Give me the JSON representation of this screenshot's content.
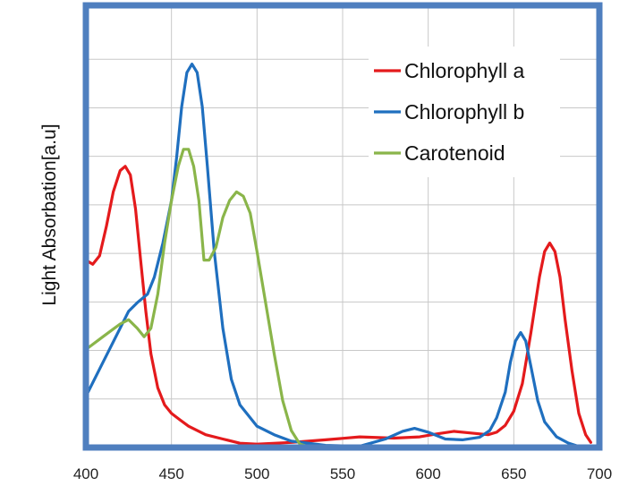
{
  "chart_data": {
    "type": "line",
    "title": "",
    "xlabel": "",
    "ylabel": "Light Absorbation[a.u]",
    "xlim": [
      400,
      700
    ],
    "ylim": [
      0,
      1
    ],
    "x_ticks": [
      "400",
      "450",
      "500",
      "550",
      "600",
      "650",
      "700"
    ],
    "grid": true,
    "legend_position": "top-right",
    "frame_color": "#4f7fbf",
    "series": [
      {
        "name": "Chlorophyll a",
        "color": "#e41a1c",
        "points": [
          [
            400,
            0.44
          ],
          [
            404,
            0.43
          ],
          [
            408,
            0.45
          ],
          [
            412,
            0.52
          ],
          [
            416,
            0.6
          ],
          [
            420,
            0.65
          ],
          [
            423,
            0.66
          ],
          [
            426,
            0.64
          ],
          [
            429,
            0.56
          ],
          [
            432,
            0.44
          ],
          [
            435,
            0.32
          ],
          [
            438,
            0.22
          ],
          [
            442,
            0.14
          ],
          [
            446,
            0.1
          ],
          [
            450,
            0.08
          ],
          [
            455,
            0.065
          ],
          [
            460,
            0.05
          ],
          [
            470,
            0.03
          ],
          [
            480,
            0.02
          ],
          [
            490,
            0.01
          ],
          [
            500,
            0.008
          ],
          [
            520,
            0.012
          ],
          [
            540,
            0.018
          ],
          [
            560,
            0.025
          ],
          [
            580,
            0.022
          ],
          [
            595,
            0.025
          ],
          [
            605,
            0.032
          ],
          [
            615,
            0.038
          ],
          [
            625,
            0.034
          ],
          [
            635,
            0.03
          ],
          [
            640,
            0.036
          ],
          [
            645,
            0.052
          ],
          [
            650,
            0.085
          ],
          [
            655,
            0.15
          ],
          [
            660,
            0.27
          ],
          [
            665,
            0.4
          ],
          [
            668,
            0.46
          ],
          [
            671,
            0.48
          ],
          [
            674,
            0.46
          ],
          [
            677,
            0.4
          ],
          [
            680,
            0.3
          ],
          [
            684,
            0.18
          ],
          [
            688,
            0.08
          ],
          [
            692,
            0.03
          ],
          [
            695,
            0.012
          ]
        ]
      },
      {
        "name": "Chlorophyll b",
        "color": "#1f6fbf",
        "points": [
          [
            400,
            0.12
          ],
          [
            410,
            0.2
          ],
          [
            420,
            0.28
          ],
          [
            425,
            0.32
          ],
          [
            430,
            0.34
          ],
          [
            436,
            0.36
          ],
          [
            440,
            0.4
          ],
          [
            445,
            0.48
          ],
          [
            450,
            0.58
          ],
          [
            453,
            0.68
          ],
          [
            456,
            0.8
          ],
          [
            459,
            0.88
          ],
          [
            462,
            0.9
          ],
          [
            465,
            0.88
          ],
          [
            468,
            0.8
          ],
          [
            471,
            0.66
          ],
          [
            475,
            0.46
          ],
          [
            480,
            0.28
          ],
          [
            485,
            0.16
          ],
          [
            490,
            0.1
          ],
          [
            500,
            0.05
          ],
          [
            510,
            0.03
          ],
          [
            520,
            0.015
          ],
          [
            540,
            0.005
          ],
          [
            560,
            0.003
          ],
          [
            575,
            0.02
          ],
          [
            585,
            0.038
          ],
          [
            592,
            0.045
          ],
          [
            600,
            0.036
          ],
          [
            610,
            0.02
          ],
          [
            620,
            0.018
          ],
          [
            630,
            0.024
          ],
          [
            636,
            0.04
          ],
          [
            640,
            0.07
          ],
          [
            645,
            0.13
          ],
          [
            648,
            0.2
          ],
          [
            651,
            0.25
          ],
          [
            654,
            0.27
          ],
          [
            657,
            0.25
          ],
          [
            660,
            0.19
          ],
          [
            664,
            0.11
          ],
          [
            668,
            0.06
          ],
          [
            675,
            0.025
          ],
          [
            682,
            0.01
          ],
          [
            690,
            0.0
          ]
        ]
      },
      {
        "name": "Carotenoid",
        "color": "#8ab54a",
        "points": [
          [
            400,
            0.23
          ],
          [
            410,
            0.26
          ],
          [
            420,
            0.29
          ],
          [
            425,
            0.3
          ],
          [
            430,
            0.28
          ],
          [
            434,
            0.26
          ],
          [
            438,
            0.28
          ],
          [
            442,
            0.36
          ],
          [
            446,
            0.48
          ],
          [
            450,
            0.58
          ],
          [
            454,
            0.66
          ],
          [
            457,
            0.7
          ],
          [
            460,
            0.7
          ],
          [
            463,
            0.66
          ],
          [
            466,
            0.58
          ],
          [
            469,
            0.44
          ],
          [
            472,
            0.44
          ],
          [
            476,
            0.47
          ],
          [
            480,
            0.54
          ],
          [
            484,
            0.58
          ],
          [
            488,
            0.6
          ],
          [
            492,
            0.59
          ],
          [
            496,
            0.55
          ],
          [
            500,
            0.46
          ],
          [
            505,
            0.34
          ],
          [
            510,
            0.22
          ],
          [
            515,
            0.11
          ],
          [
            520,
            0.04
          ],
          [
            525,
            0.008
          ],
          [
            530,
            0.002
          ],
          [
            560,
            0.0
          ],
          [
            600,
            0.0
          ],
          [
            650,
            0.0
          ],
          [
            700,
            0.0
          ]
        ]
      }
    ]
  }
}
